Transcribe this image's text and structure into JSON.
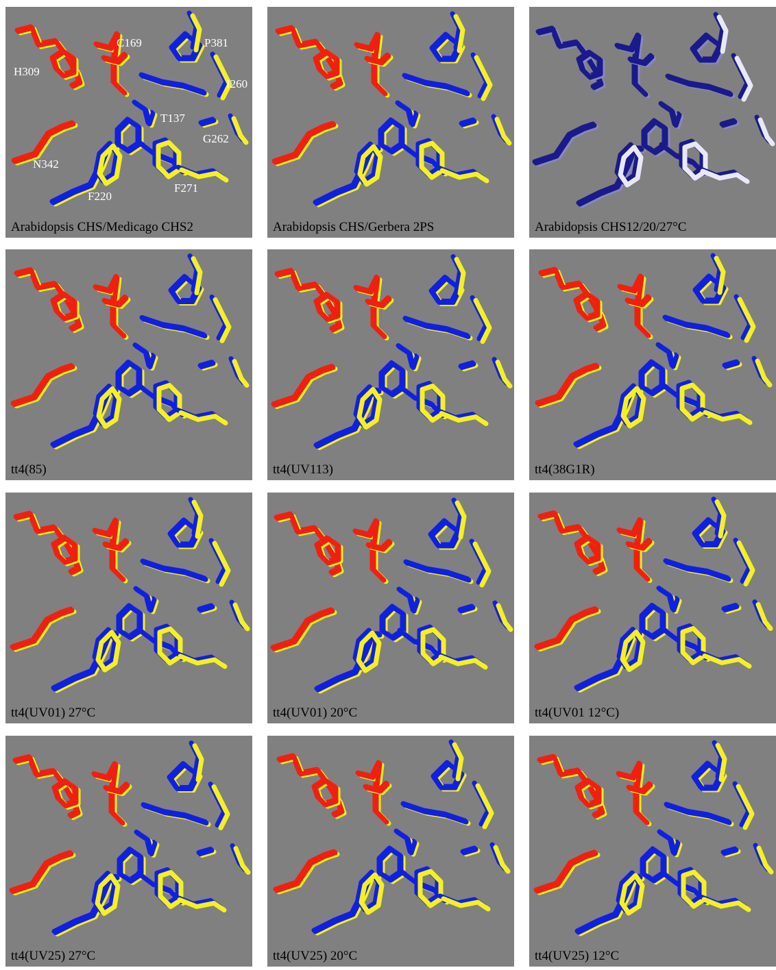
{
  "panels": [
    {
      "caption": "Arabidopsis CHS/Medicago CHS2",
      "labels": [
        "H309",
        "C169",
        "P381",
        "I260",
        "T137",
        "G262",
        "N342",
        "F220",
        "F271"
      ]
    },
    {
      "caption": "Arabidopsis CHS/Gerbera 2PS"
    },
    {
      "caption": "Arabidopsis CHS12/20/27°C"
    },
    {
      "caption": "tt4(85)"
    },
    {
      "caption": "tt4(UV113)"
    },
    {
      "caption": "tt4(38G1R)"
    },
    {
      "caption": "tt4(UV01) 27°C"
    },
    {
      "caption": "tt4(UV01) 20°C"
    },
    {
      "caption": "tt4(UV01 12°C)"
    },
    {
      "caption": "tt4(UV25) 27°C"
    },
    {
      "caption": "tt4(UV25) 20°C"
    },
    {
      "caption": "tt4(UV25) 12°C"
    }
  ]
}
